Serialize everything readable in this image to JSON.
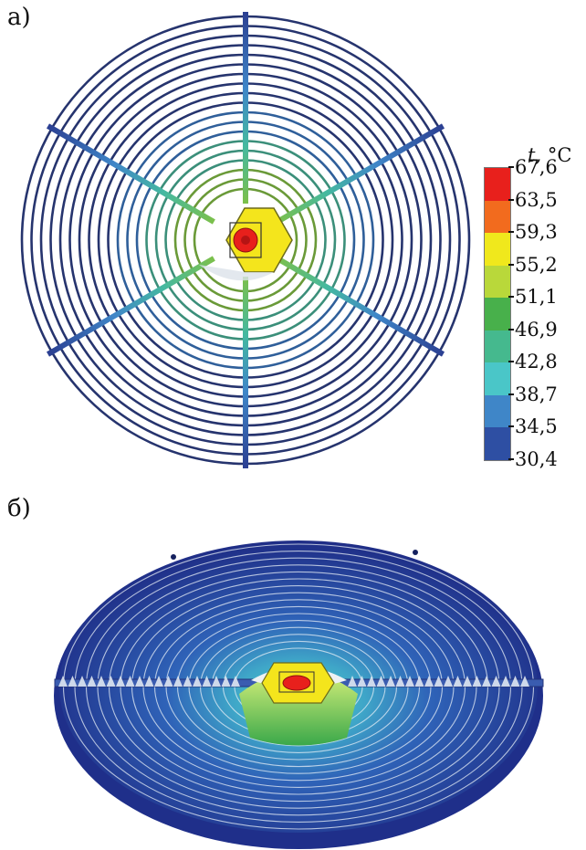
{
  "labels": {
    "panel_a": "а)",
    "panel_b": "б)"
  },
  "legend": {
    "unit_symbol": "t,",
    "unit": "°C",
    "ticks": [
      "67,6",
      "63,5",
      "59,3",
      "55,2",
      "51,1",
      "46,9",
      "42,8",
      "38,7",
      "34,5",
      "30,4"
    ],
    "colors": [
      "#e8201c",
      "#f26b1e",
      "#f0e81c",
      "#b9d83a",
      "#48b04b",
      "#45b98e",
      "#4ac6c8",
      "#3f86c8",
      "#2e4fa3"
    ]
  },
  "colors": {
    "cold": "#26346e",
    "mid": "#3f86c8",
    "warm": "#48b04b",
    "hot_hex": "#f4e51c",
    "core": "#e8201c"
  }
}
